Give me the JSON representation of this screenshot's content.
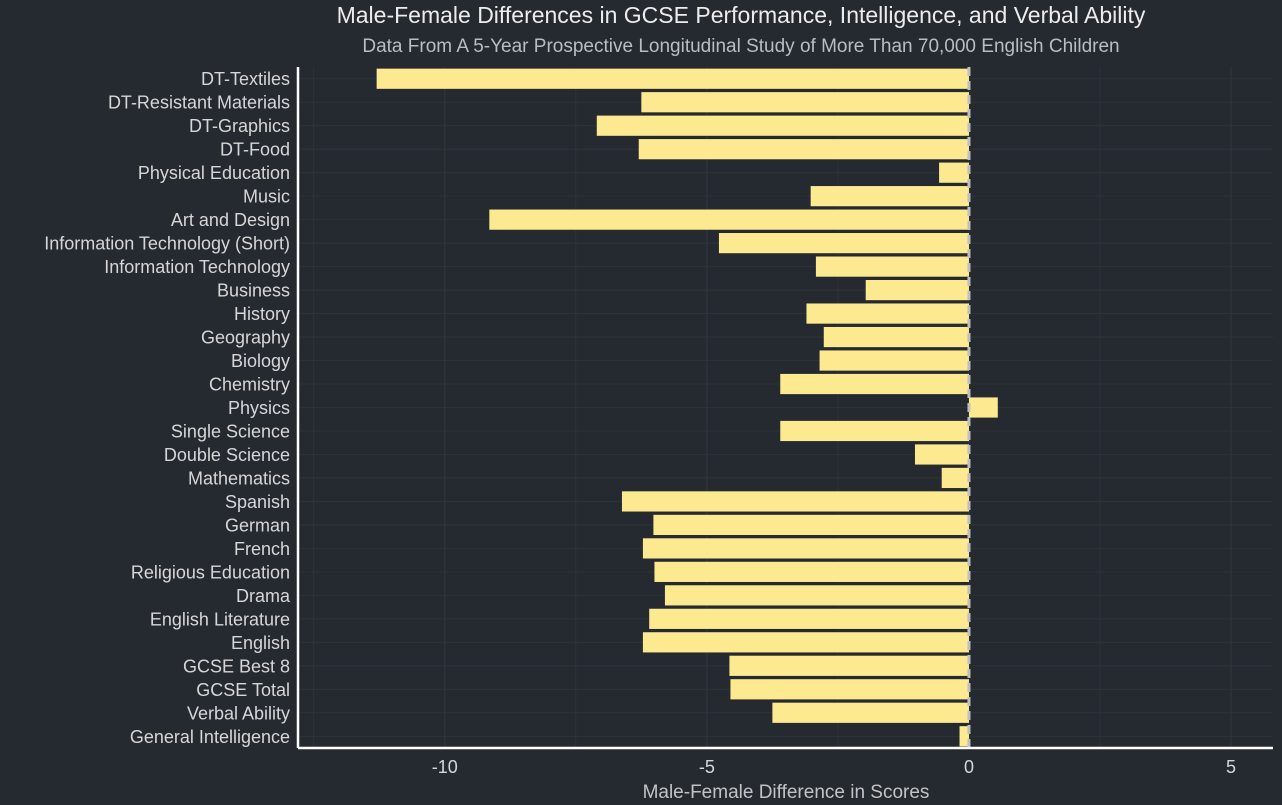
{
  "colors": {
    "background": "#252a31",
    "bar_fill": "#fde98f",
    "grid": "#30353c",
    "axis": "#ffffff",
    "zero_line": "#bfbfbf"
  },
  "chart_data": {
    "type": "bar",
    "orientation": "horizontal",
    "title": "Male-Female Differences in GCSE Performance, Intelligence, and Verbal Ability",
    "subtitle": "Data From A 5-Year Prospective Longitudinal Study of More Than 70,000 English Children",
    "xlabel": "Male-Female Difference in Scores",
    "ylabel": "",
    "xlim": [
      -12.8,
      5.8
    ],
    "xticks": [
      -10,
      -5,
      0,
      5
    ],
    "xtick_labels": [
      "-10",
      "-5",
      "0",
      "5"
    ],
    "grid": true,
    "legend": "none",
    "categories": [
      "DT-Textiles",
      "DT-Resistant Materials",
      "DT-Graphics",
      "DT-Food",
      "Physical Education",
      "Music",
      "Art and Design",
      "Information Technology (Short)",
      "Information Technology",
      "Business",
      "History",
      "Geography",
      "Biology",
      "Chemistry",
      "Physics",
      "Single Science",
      "Double Science",
      "Mathematics",
      "Spanish",
      "German",
      "French",
      "Religious Education",
      "Drama",
      "English Literature",
      "English",
      "GCSE Best 8",
      "GCSE Total",
      "Verbal Ability",
      "General Intelligence"
    ],
    "values": [
      -11.3,
      -6.25,
      -7.1,
      -6.3,
      -0.57,
      -3.02,
      -9.15,
      -4.77,
      -2.92,
      -1.97,
      -3.1,
      -2.77,
      -2.85,
      -3.6,
      0.55,
      -3.6,
      -1.03,
      -0.52,
      -6.62,
      -6.02,
      -6.22,
      -6.0,
      -5.8,
      -6.1,
      -6.22,
      -4.57,
      -4.55,
      -3.75,
      -0.18
    ]
  }
}
